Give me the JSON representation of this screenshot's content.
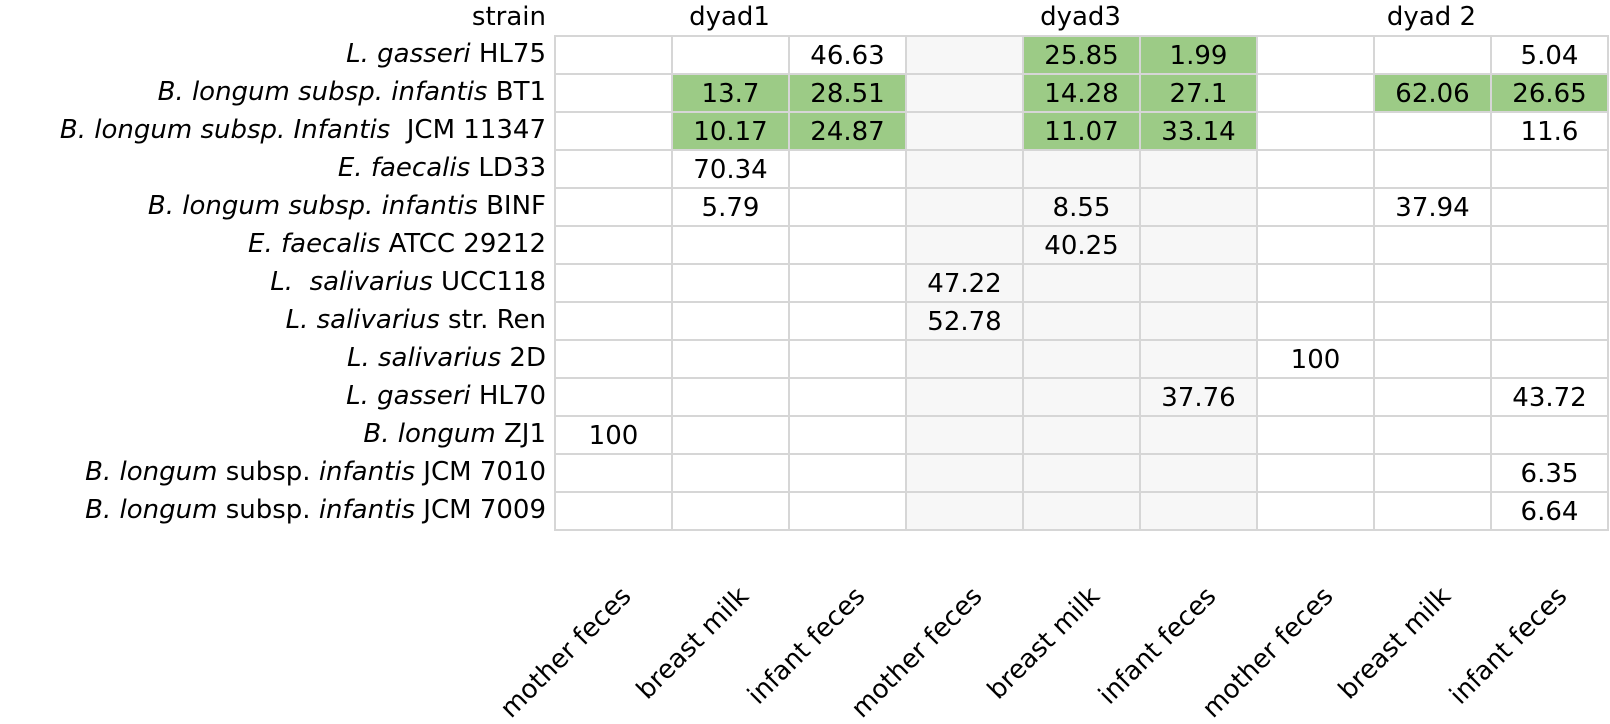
{
  "chart_data": {
    "type": "table",
    "row_header_label": "strain",
    "groups": [
      "dyad1",
      "dyad3",
      "dyad 2"
    ],
    "columns": [
      "mother feces",
      "breast milk",
      "infant feces",
      "mother feces",
      "breast milk",
      "infant feces",
      "mother feces",
      "breast milk",
      "infant feces"
    ],
    "rows": [
      {
        "strain": [
          {
            "t": "L. gasseri",
            "i": true
          },
          {
            "t": " HL75",
            "i": false
          }
        ],
        "values": [
          null,
          null,
          46.63,
          null,
          25.85,
          1.99,
          null,
          null,
          5.04
        ],
        "highlight": [
          false,
          false,
          false,
          false,
          true,
          true,
          false,
          false,
          false
        ]
      },
      {
        "strain": [
          {
            "t": "B. longum subsp. infantis",
            "i": true
          },
          {
            "t": " BT1",
            "i": false
          }
        ],
        "values": [
          null,
          13.7,
          28.51,
          null,
          14.28,
          27.1,
          null,
          62.06,
          26.65
        ],
        "highlight": [
          false,
          true,
          true,
          false,
          true,
          true,
          false,
          true,
          true
        ]
      },
      {
        "strain": [
          {
            "t": "B. longum subsp. Infantis",
            "i": true
          },
          {
            "t": "  JCM 11347",
            "i": false
          }
        ],
        "values": [
          null,
          10.17,
          24.87,
          null,
          11.07,
          33.14,
          null,
          null,
          11.6
        ],
        "highlight": [
          false,
          true,
          true,
          false,
          true,
          true,
          false,
          false,
          false
        ]
      },
      {
        "strain": [
          {
            "t": "E. faecalis",
            "i": true
          },
          {
            "t": " LD33",
            "i": false
          }
        ],
        "values": [
          null,
          70.34,
          null,
          null,
          null,
          null,
          null,
          null,
          null
        ],
        "highlight": [
          false,
          false,
          false,
          false,
          false,
          false,
          false,
          false,
          false
        ]
      },
      {
        "strain": [
          {
            "t": "B. longum subsp. infantis",
            "i": true
          },
          {
            "t": " BINF",
            "i": false
          }
        ],
        "values": [
          null,
          5.79,
          null,
          null,
          8.55,
          null,
          null,
          37.94,
          null
        ],
        "highlight": [
          false,
          false,
          false,
          false,
          false,
          false,
          false,
          false,
          false
        ]
      },
      {
        "strain": [
          {
            "t": "E. faecalis",
            "i": true
          },
          {
            "t": " ATCC 29212",
            "i": false
          }
        ],
        "values": [
          null,
          null,
          null,
          null,
          40.25,
          null,
          null,
          null,
          null
        ],
        "highlight": [
          false,
          false,
          false,
          false,
          false,
          false,
          false,
          false,
          false
        ]
      },
      {
        "strain": [
          {
            "t": "L.  salivarius",
            "i": true
          },
          {
            "t": " UCC118",
            "i": false
          }
        ],
        "values": [
          null,
          null,
          null,
          47.22,
          null,
          null,
          null,
          null,
          null
        ],
        "highlight": [
          false,
          false,
          false,
          false,
          false,
          false,
          false,
          false,
          false
        ]
      },
      {
        "strain": [
          {
            "t": "L. salivarius",
            "i": true
          },
          {
            "t": " str. Ren",
            "i": false
          }
        ],
        "values": [
          null,
          null,
          null,
          52.78,
          null,
          null,
          null,
          null,
          null
        ],
        "highlight": [
          false,
          false,
          false,
          false,
          false,
          false,
          false,
          false,
          false
        ]
      },
      {
        "strain": [
          {
            "t": "L. salivarius",
            "i": true
          },
          {
            "t": " 2D",
            "i": false
          }
        ],
        "values": [
          null,
          null,
          null,
          null,
          null,
          null,
          100,
          null,
          null
        ],
        "highlight": [
          false,
          false,
          false,
          false,
          false,
          false,
          false,
          false,
          false
        ]
      },
      {
        "strain": [
          {
            "t": "L. gasseri",
            "i": true
          },
          {
            "t": " HL70",
            "i": false
          }
        ],
        "values": [
          null,
          null,
          null,
          null,
          null,
          37.76,
          null,
          null,
          43.72
        ],
        "highlight": [
          false,
          false,
          false,
          false,
          false,
          false,
          false,
          false,
          false
        ]
      },
      {
        "strain": [
          {
            "t": "B. longum",
            "i": true
          },
          {
            "t": " ZJ1",
            "i": false
          }
        ],
        "values": [
          100,
          null,
          null,
          null,
          null,
          null,
          null,
          null,
          null
        ],
        "highlight": [
          false,
          false,
          false,
          false,
          false,
          false,
          false,
          false,
          false
        ]
      },
      {
        "strain": [
          {
            "t": "B. longum",
            "i": true
          },
          {
            "t": " subsp. ",
            "i": false
          },
          {
            "t": "infantis",
            "i": true
          },
          {
            "t": " JCM 7010",
            "i": false
          }
        ],
        "values": [
          null,
          null,
          null,
          null,
          null,
          null,
          null,
          null,
          6.35
        ],
        "highlight": [
          false,
          false,
          false,
          false,
          false,
          false,
          false,
          false,
          false
        ]
      },
      {
        "strain": [
          {
            "t": "B. longum",
            "i": true
          },
          {
            "t": " subsp. ",
            "i": false
          },
          {
            "t": "infantis",
            "i": true
          },
          {
            "t": " JCM 7009",
            "i": false
          }
        ],
        "values": [
          null,
          null,
          null,
          null,
          null,
          null,
          null,
          null,
          6.64
        ],
        "highlight": [
          false,
          false,
          false,
          false,
          false,
          false,
          false,
          false,
          false
        ]
      }
    ],
    "colors": {
      "highlight": "#9ccb86",
      "shaded_column": "#f7f7f7",
      "grid": "#d6d6d6"
    },
    "shaded_columns": [
      3,
      4,
      5
    ]
  }
}
